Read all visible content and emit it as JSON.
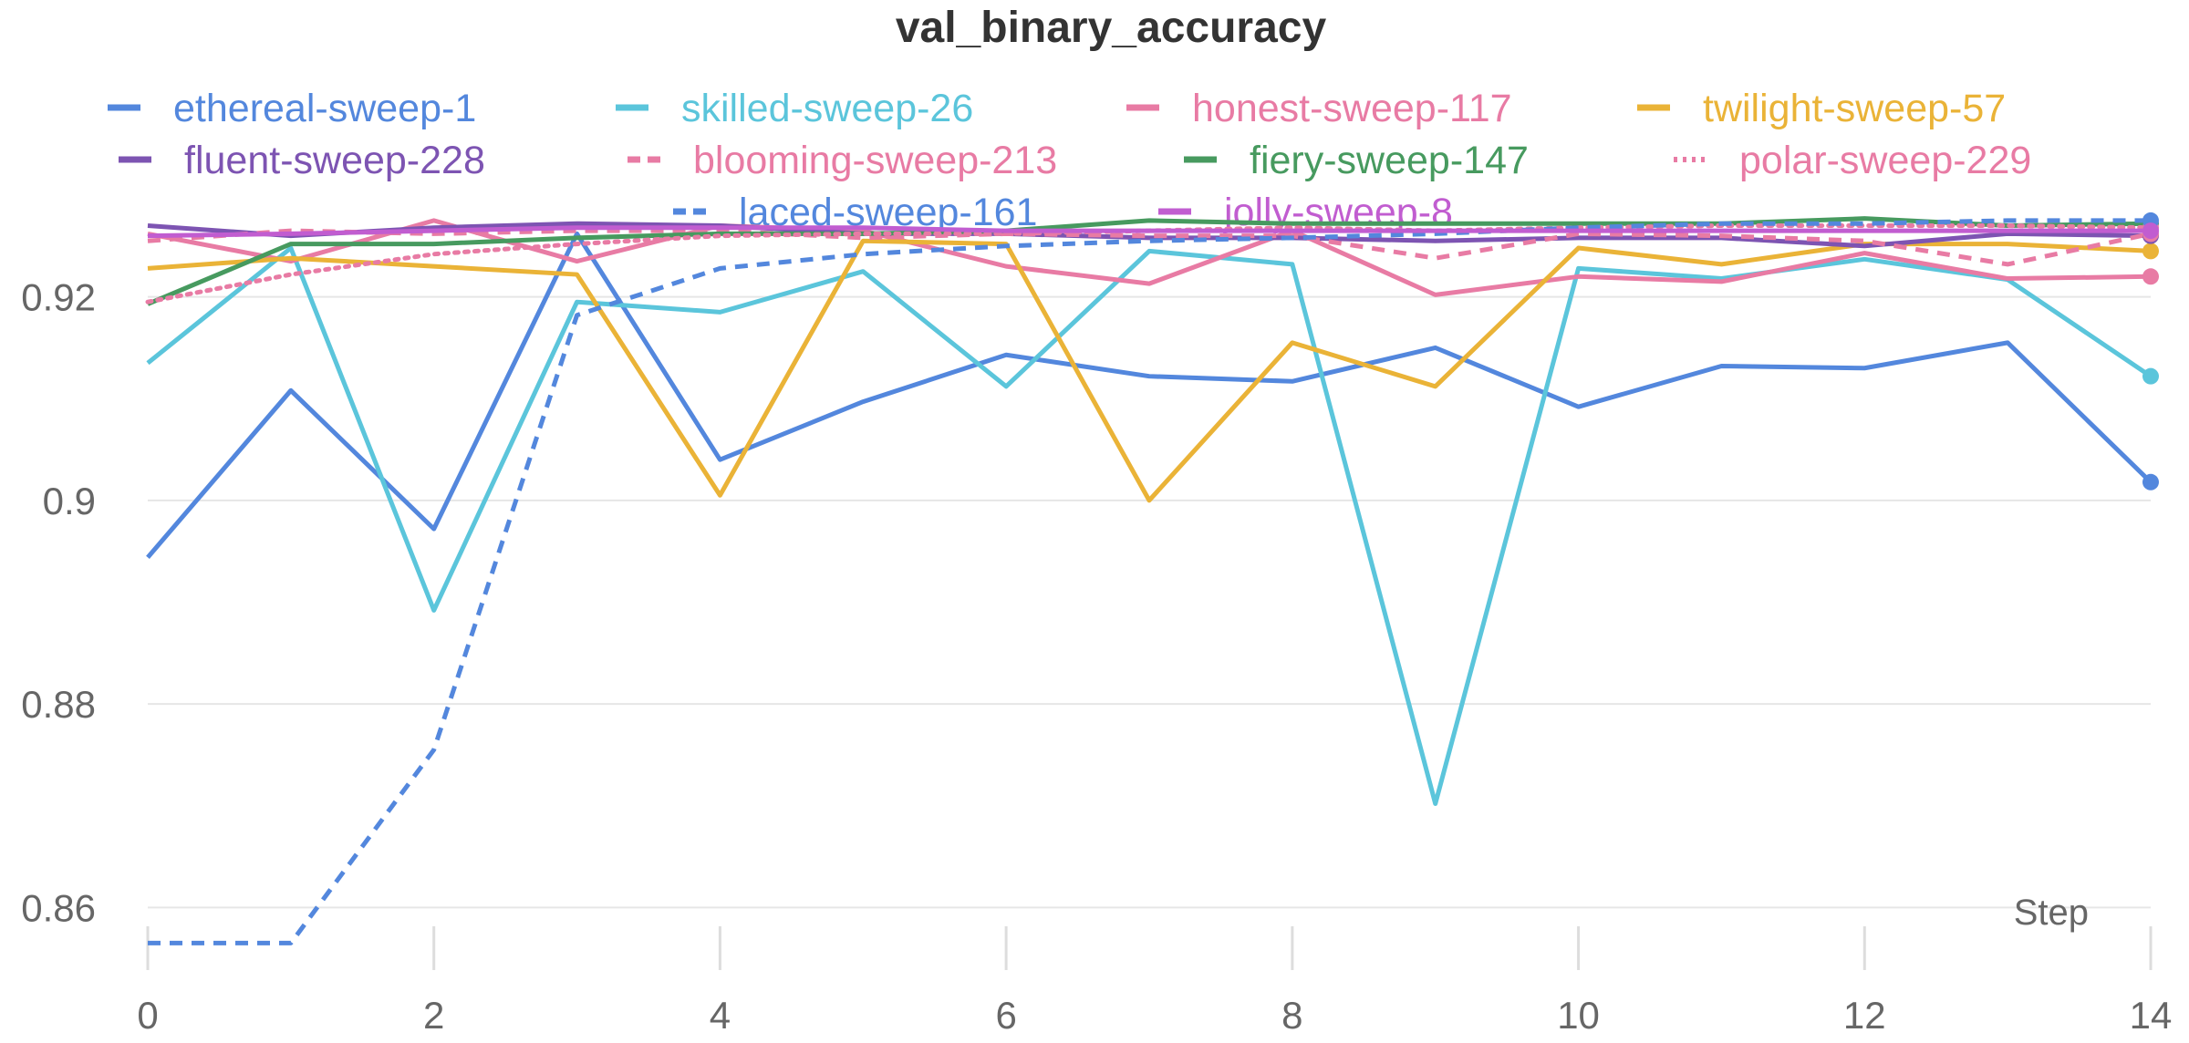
{
  "chart_data": {
    "type": "line",
    "title": "val_binary_accuracy",
    "xlabel": "Step",
    "ylabel": "",
    "x": [
      0,
      1,
      2,
      3,
      4,
      5,
      6,
      7,
      8,
      9,
      10,
      11,
      12,
      13,
      14
    ],
    "xlim": [
      0,
      14
    ],
    "ylim": [
      0.856,
      0.93
    ],
    "x_ticks": [
      0,
      2,
      4,
      6,
      8,
      10,
      12,
      14
    ],
    "y_ticks": [
      0.86,
      0.88,
      0.9,
      0.92
    ],
    "x_tick_labels": [
      "0",
      "2",
      "4",
      "6",
      "8",
      "10",
      "12",
      "14"
    ],
    "y_tick_labels": [
      "0.86",
      "0.88",
      "0.9",
      "0.92"
    ],
    "grid": true,
    "legend_position": "top",
    "series": [
      {
        "name": "ethereal-sweep-1",
        "color": "#5387dd",
        "dash": "solid",
        "values": [
          0.8944,
          0.9108,
          0.8972,
          0.9262,
          0.904,
          0.9097,
          0.9143,
          0.9122,
          0.9117,
          0.915,
          0.9092,
          0.9132,
          0.913,
          0.9155,
          0.9018
        ]
      },
      {
        "name": "skilled-sweep-26",
        "color": "#5bc5db",
        "dash": "solid",
        "values": [
          0.9135,
          0.9248,
          0.8892,
          0.9195,
          0.9185,
          0.9225,
          0.9112,
          0.9245,
          0.9232,
          0.8702,
          0.9228,
          0.9218,
          0.9237,
          0.9217,
          0.9122
        ]
      },
      {
        "name": "honest-sweep-117",
        "color": "#e87ba4",
        "dash": "solid",
        "values": [
          0.9262,
          0.9235,
          0.9275,
          0.9235,
          0.927,
          0.9265,
          0.923,
          0.9213,
          0.9265,
          0.9202,
          0.922,
          0.9215,
          0.9243,
          0.9218,
          0.922
        ]
      },
      {
        "name": "twilight-sweep-57",
        "color": "#eab337",
        "dash": "solid",
        "values": [
          0.9228,
          0.9238,
          0.923,
          0.9222,
          0.9005,
          0.9255,
          0.9252,
          0.9,
          0.9155,
          0.9112,
          0.9248,
          0.9232,
          0.9252,
          0.9252,
          0.9245
        ]
      },
      {
        "name": "fluent-sweep-228",
        "color": "#7d54b2",
        "dash": "solid",
        "values": [
          0.927,
          0.926,
          0.9268,
          0.9272,
          0.927,
          0.9262,
          0.9262,
          0.9258,
          0.9258,
          0.9255,
          0.9258,
          0.9258,
          0.925,
          0.9262,
          0.926
        ]
      },
      {
        "name": "blooming-sweep-213",
        "color": "#e87ba4",
        "dash": "dashed",
        "values": [
          0.9255,
          0.9265,
          0.9262,
          0.9265,
          0.9265,
          0.9258,
          0.9262,
          0.926,
          0.926,
          0.9238,
          0.9262,
          0.926,
          0.9255,
          0.9232,
          0.9262
        ]
      },
      {
        "name": "fiery-sweep-147",
        "color": "#479a5f",
        "dash": "solid",
        "values": [
          0.9193,
          0.9252,
          0.9252,
          0.9258,
          0.9262,
          0.9262,
          0.9265,
          0.9275,
          0.9272,
          0.9272,
          0.9272,
          0.9272,
          0.9277,
          0.927,
          0.9272
        ]
      },
      {
        "name": "polar-sweep-229",
        "color": "#e87ba4",
        "dash": "dotted",
        "values": [
          0.9195,
          0.9222,
          0.9242,
          0.9252,
          0.926,
          0.9262,
          0.9262,
          0.9265,
          0.9268,
          0.9265,
          0.9268,
          0.927,
          0.927,
          0.927,
          0.9268
        ]
      },
      {
        "name": "laced-sweep-161",
        "color": "#5387dd",
        "dash": "dashed",
        "values": [
          0.8565,
          0.8565,
          0.8755,
          0.9182,
          0.9228,
          0.9242,
          0.925,
          0.9255,
          0.9258,
          0.9262,
          0.9268,
          0.9272,
          0.9272,
          0.9275,
          0.9275
        ]
      },
      {
        "name": "jolly-sweep-8",
        "color": "#c15dd0",
        "dash": "solid",
        "values": [
          0.926,
          0.9262,
          0.9265,
          0.9268,
          0.9268,
          0.9268,
          0.9265,
          0.9265,
          0.9265,
          0.9265,
          0.9265,
          0.9265,
          0.9265,
          0.9265,
          0.9265
        ]
      }
    ]
  }
}
